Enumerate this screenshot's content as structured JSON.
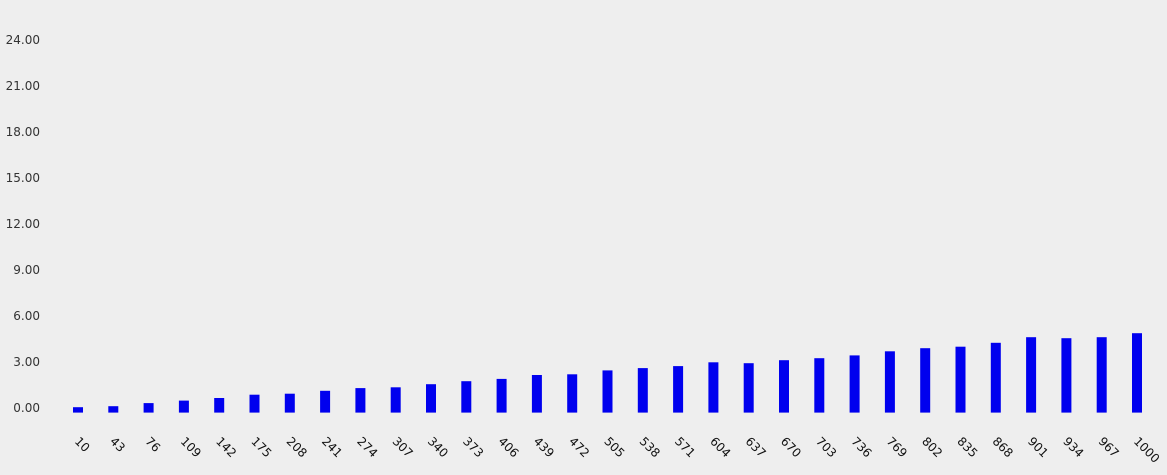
{
  "chart_data": {
    "type": "bar",
    "title": "",
    "xlabel": "",
    "ylabel": "",
    "categories": [
      "10",
      "43",
      "76",
      "109",
      "142",
      "175",
      "208",
      "241",
      "274",
      "307",
      "340",
      "373",
      "406",
      "439",
      "472",
      "505",
      "538",
      "571",
      "604",
      "637",
      "670",
      "703",
      "736",
      "769",
      "802",
      "835",
      "868",
      "901",
      "934",
      "967",
      "1000"
    ],
    "values": [
      0.05,
      0.12,
      0.32,
      0.48,
      0.65,
      0.87,
      0.93,
      1.12,
      1.3,
      1.35,
      1.55,
      1.75,
      1.9,
      2.15,
      2.2,
      2.45,
      2.6,
      2.73,
      2.98,
      2.92,
      3.12,
      3.25,
      3.43,
      3.7,
      3.9,
      4.0,
      4.25,
      4.62,
      4.55,
      4.62,
      4.88
    ],
    "yticks": [
      "0.00",
      "3.00",
      "6.00",
      "9.00",
      "12.00",
      "15.00",
      "18.00",
      "21.00",
      "24.00"
    ],
    "ylim": [
      -0.3,
      24
    ],
    "grid": false,
    "bar_color": "#0000ee",
    "background": "#eeeeee"
  }
}
